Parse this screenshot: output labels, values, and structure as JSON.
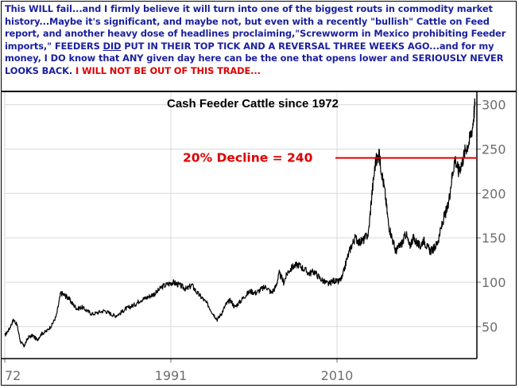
{
  "commentary": {
    "part1": "This WILL fail...and I firmly believe it will turn into one of the biggest routs in commodity market history...Maybe it's significant, and maybe not, but even with a recently \"bullish\" Cattle on Feed report, and another heavy dose of headlines proclaiming,\"Screwworm in Mexico prohibiting Feeder imports,\" FEEDERS ",
    "underlined": "DID",
    "part2": " PUT IN THEIR TOP TICK AND A REVERSAL THREE WEEKS AGO...and for my money, I DO know that ANY given day here can be the one that opens lower and SERIOUSLY NEVER LOOKS BACK. ",
    "red": " I WILL NOT BE OUT OF THIS TRADE...",
    "text_color": "#1a1f9e",
    "highlight_color": "#e00000"
  },
  "chart_data": {
    "type": "line",
    "title": "Cash Feeder Cattle since 1972",
    "xlabel": "",
    "ylabel": "",
    "x_ticks": [
      "72",
      "1991",
      "2010"
    ],
    "y_ticks": [
      50,
      100,
      150,
      200,
      250,
      300
    ],
    "xlim": [
      1972,
      2026
    ],
    "ylim": [
      14,
      314
    ],
    "grid": true,
    "series": [
      {
        "color": "#000000",
        "x": [
          1972.0,
          1972.5,
          1973.0,
          1973.4,
          1973.8,
          1974.2,
          1974.7,
          1975.2,
          1975.7,
          1976.2,
          1976.8,
          1977.4,
          1977.9,
          1978.4,
          1978.9,
          1979.3,
          1979.8,
          1980.3,
          1980.8,
          1981.4,
          1982.0,
          1982.7,
          1983.4,
          1984.0,
          1984.6,
          1985.2,
          1985.8,
          1986.3,
          1986.9,
          1987.5,
          1988.1,
          1988.7,
          1989.3,
          1990.0,
          1990.7,
          1991.2,
          1991.7,
          1992.3,
          1992.8,
          1993.4,
          1994.0,
          1994.6,
          1995.2,
          1995.8,
          1996.3,
          1996.8,
          1997.3,
          1997.8,
          1998.3,
          1998.9,
          1999.5,
          2000.1,
          2000.7,
          2001.3,
          2001.9,
          2002.5,
          2003.0,
          2003.4,
          2003.9,
          2004.4,
          2005.0,
          2005.6,
          2006.2,
          2006.8,
          2007.4,
          2008.0,
          2008.6,
          2009.1,
          2009.6,
          2010.1,
          2010.6,
          2011.1,
          2011.6,
          2012.1,
          2012.6,
          2013.1,
          2013.6,
          2014.0,
          2014.4,
          2014.8,
          2015.1,
          2015.5,
          2015.9,
          2016.3,
          2016.7,
          2017.1,
          2017.5,
          2017.9,
          2018.3,
          2018.7,
          2019.1,
          2019.5,
          2019.9,
          2020.3,
          2020.7,
          2021.1,
          2021.5,
          2021.9,
          2022.3,
          2022.7,
          2023.1,
          2023.5,
          2023.9,
          2024.3,
          2024.7,
          2025.1,
          2025.5,
          2025.8
        ],
        "values": [
          40,
          47,
          58,
          52,
          33,
          28,
          38,
          40,
          35,
          42,
          45,
          52,
          62,
          88,
          85,
          82,
          75,
          70,
          72,
          68,
          64,
          66,
          68,
          65,
          62,
          65,
          70,
          72,
          75,
          80,
          82,
          85,
          88,
          95,
          98,
          100,
          98,
          95,
          92,
          97,
          88,
          82,
          75,
          65,
          58,
          65,
          75,
          80,
          72,
          78,
          85,
          90,
          88,
          92,
          95,
          88,
          95,
          110,
          100,
          112,
          118,
          120,
          115,
          110,
          112,
          105,
          100,
          98,
          102,
          100,
          105,
          125,
          140,
          150,
          145,
          148,
          155,
          200,
          235,
          245,
          225,
          200,
          165,
          150,
          135,
          140,
          145,
          155,
          140,
          150,
          145,
          140,
          148,
          140,
          135,
          138,
          145,
          160,
          175,
          185,
          215,
          240,
          225,
          235,
          250,
          258,
          275,
          303
        ]
      }
    ],
    "annotations": [
      {
        "text": "20% Decline = 240",
        "y": 240,
        "color": "#e00000"
      }
    ],
    "grid_color": "#d9d9d9",
    "axis_color": "#000000",
    "tick_color": "#6d6d6d"
  }
}
